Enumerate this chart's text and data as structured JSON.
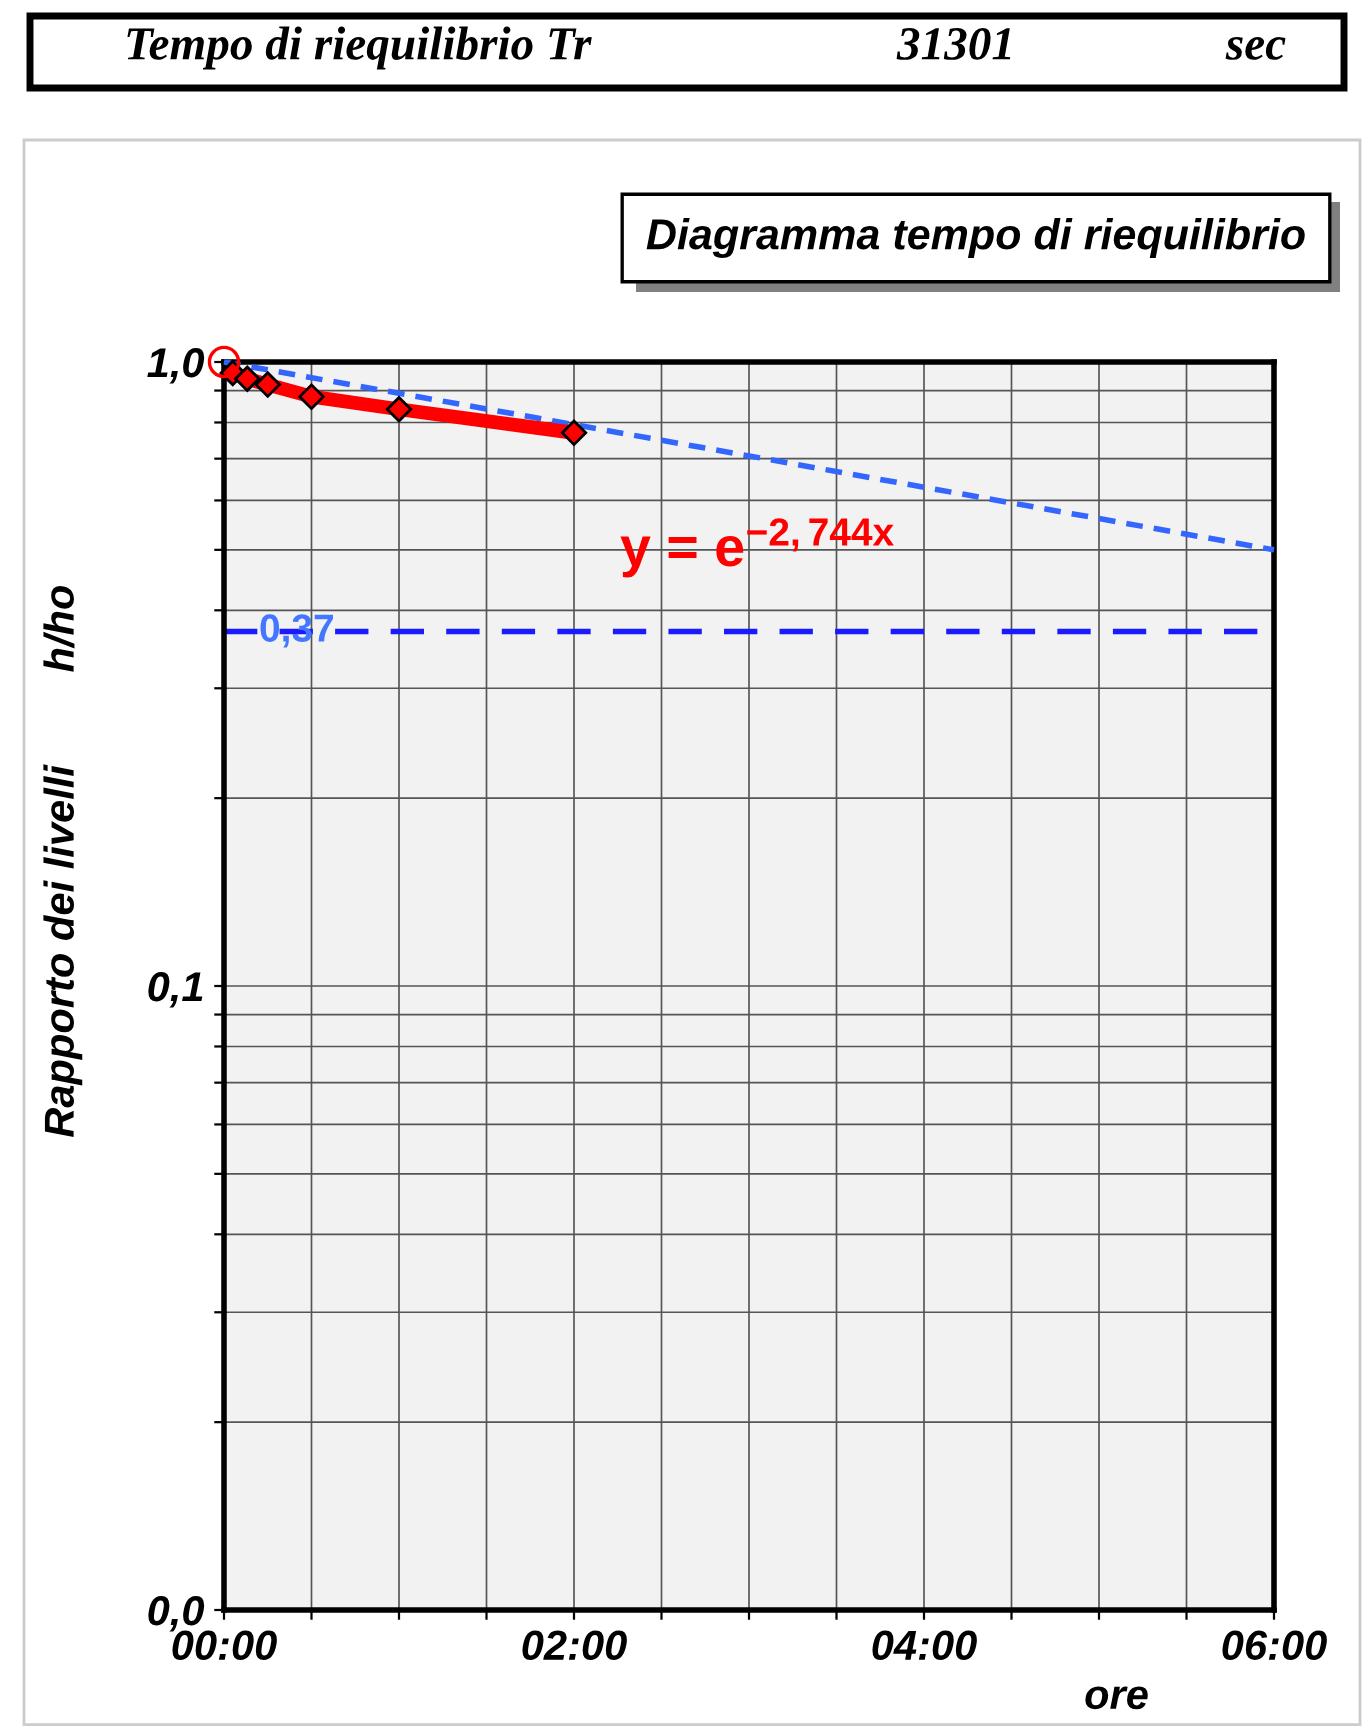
{
  "chart_data": {
    "type": "line",
    "title": "Diagramma tempo di riequilibrio",
    "xlabel": "ore",
    "ylabel": "Rapporto dei livelli        h/ho",
    "annotations": [
      "Tempo di riequilibrio Tr",
      "31301",
      "sec",
      "y = e$^{−2,744x}$"
    ],
    "log": "y",
    "xlim": [
      0,
      6
    ],
    "ylim": [
      0.01,
      1
    ],
    "xticks": [
      {
        "value": 0,
        "label": "00:00"
      },
      {
        "value": 0.5,
        "label": null
      },
      {
        "value": 1,
        "label": null
      },
      {
        "value": 1.5,
        "label": null
      },
      {
        "value": 2,
        "label": "02:00"
      },
      {
        "value": 2.5,
        "label": null
      },
      {
        "value": 3,
        "label": null
      },
      {
        "value": 3.5,
        "label": null
      },
      {
        "value": 4,
        "label": "04:00"
      },
      {
        "value": 4.5,
        "label": null
      },
      {
        "value": 5,
        "label": null
      },
      {
        "value": 5.5,
        "label": null
      },
      {
        "value": 6,
        "label": "06:00"
      }
    ],
    "yticks": [
      {
        "value": 0.01,
        "label": "0,0"
      },
      {
        "value": 0.02,
        "label": null
      },
      {
        "value": 0.03,
        "label": null
      },
      {
        "value": 0.04,
        "label": null
      },
      {
        "value": 0.05,
        "label": null
      },
      {
        "value": 0.06,
        "label": null
      },
      {
        "value": 0.07,
        "label": null
      },
      {
        "value": 0.08,
        "label": null
      },
      {
        "value": 0.09,
        "label": null
      },
      {
        "value": 0.1,
        "label": "0,1"
      },
      {
        "value": 0.2,
        "label": null
      },
      {
        "value": 0.3,
        "label": null
      },
      {
        "value": 0.4,
        "label": null
      },
      {
        "value": 0.5,
        "label": null
      },
      {
        "value": 0.6,
        "label": null
      },
      {
        "value": 0.7,
        "label": null
      },
      {
        "value": 0.8,
        "label": null
      },
      {
        "value": 0.9,
        "label": null
      },
      {
        "value": 1,
        "label": "1,0"
      }
    ],
    "grid": true,
    "ref_lines": [
      {
        "axis": "y",
        "value": 0.37,
        "label": "0,37",
        "color": "#1a1aff",
        "line_style": "dashed"
      }
    ],
    "series": [
      {
        "color": "#ff0000",
        "marker": "diamond",
        "line_style": "solid",
        "x": [
          0.05,
          0.133,
          0.25,
          0.5,
          1,
          2
        ],
        "values": [
          0.96,
          0.94,
          0.92,
          0.88,
          0.84,
          0.77
        ]
      },
      {
        "color": "#3366ff",
        "marker": "none",
        "line_style": "dashed",
        "x": [
          0,
          6
        ],
        "values": [
          1,
          0.5
        ]
      },
      {
        "type": "scatter",
        "color": "#ff0000",
        "marker": "circle",
        "x": [
          0
        ],
        "values": [
          1
        ]
      }
    ]
  }
}
